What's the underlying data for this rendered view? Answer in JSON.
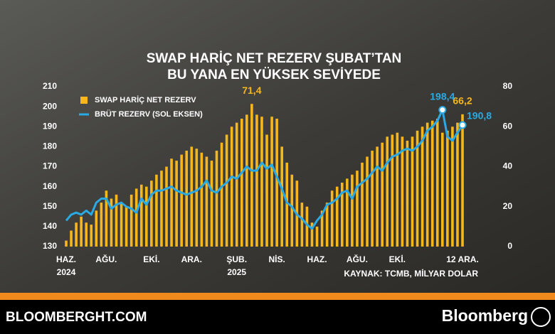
{
  "chart_data": {
    "type": "combo",
    "title_lines": [
      "SWAP HARİÇ NET REZERV ŞUBAT’TAN",
      "BU YANA EN YÜKSEK SEVİYEDE"
    ],
    "source": "KAYNAK: TCMB, MİLYAR DOLAR",
    "categories": [
      "HAZ.",
      null,
      null,
      null,
      null,
      null,
      null,
      null,
      "AĞU.",
      null,
      null,
      null,
      null,
      null,
      null,
      null,
      null,
      "EKİ.",
      null,
      null,
      null,
      null,
      null,
      null,
      null,
      "ARA.",
      null,
      null,
      null,
      null,
      null,
      null,
      null,
      null,
      "ŞUB.",
      null,
      null,
      null,
      null,
      null,
      null,
      null,
      "NİS.",
      null,
      null,
      null,
      null,
      null,
      null,
      null,
      "HAZ.",
      null,
      null,
      null,
      null,
      null,
      null,
      null,
      "AĞU.",
      null,
      null,
      null,
      null,
      null,
      null,
      null,
      "EKİ.",
      null,
      null,
      null,
      null,
      null,
      null,
      null,
      null,
      null,
      null,
      null,
      null,
      "12 ARA."
    ],
    "category_sublabels": [
      "2024",
      null,
      null,
      null,
      null,
      null,
      null,
      null,
      null,
      null,
      null,
      null,
      null,
      null,
      null,
      null,
      null,
      null,
      null,
      null,
      null,
      null,
      null,
      null,
      null,
      null,
      null,
      null,
      null,
      null,
      null,
      null,
      null,
      null,
      "2025",
      null,
      null,
      null,
      null,
      null,
      null,
      null,
      null,
      null,
      null,
      null,
      null,
      null,
      null,
      null,
      null,
      null,
      null,
      null,
      null,
      null,
      null,
      null,
      null,
      null,
      null,
      null,
      null,
      null,
      null,
      null,
      null,
      null,
      null,
      null,
      null,
      null,
      null,
      null,
      null,
      null,
      null,
      null,
      null,
      null
    ],
    "series": [
      {
        "name": "SWAP HARİÇ NET REZERV",
        "type": "bar",
        "axis": "y2",
        "color": "#f5b71c",
        "values": [
          3,
          8,
          12,
          15,
          12,
          11,
          18,
          22,
          28,
          24,
          26,
          22,
          20,
          26,
          29,
          31,
          30,
          33,
          36,
          38,
          40,
          44,
          43,
          46,
          48,
          50,
          49,
          47,
          45,
          43,
          48,
          52,
          56,
          60,
          62,
          64,
          66,
          71.4,
          66,
          65,
          56,
          65,
          64,
          50,
          42,
          36,
          33,
          22,
          20,
          12,
          10,
          18,
          22,
          28,
          30,
          32,
          34,
          36,
          38,
          42,
          45,
          48,
          50,
          52,
          55,
          56,
          57,
          55,
          53,
          55,
          58,
          60,
          62,
          63,
          64,
          57,
          58,
          60,
          62,
          66.2
        ],
        "value_labels": [
          null,
          null,
          null,
          null,
          null,
          null,
          null,
          null,
          null,
          null,
          null,
          null,
          null,
          null,
          null,
          null,
          null,
          null,
          null,
          null,
          null,
          null,
          null,
          null,
          null,
          null,
          null,
          null,
          null,
          null,
          null,
          null,
          null,
          null,
          null,
          null,
          null,
          "71,4",
          null,
          null,
          null,
          null,
          null,
          null,
          null,
          null,
          null,
          null,
          null,
          null,
          null,
          null,
          null,
          null,
          null,
          null,
          null,
          null,
          null,
          null,
          null,
          null,
          null,
          null,
          null,
          null,
          null,
          null,
          null,
          null,
          null,
          null,
          null,
          null,
          null,
          null,
          null,
          null,
          null,
          "66,2"
        ]
      },
      {
        "name": "BRÜT REZERV (SOL EKSEN)",
        "type": "line",
        "color": "#2aa9e3",
        "values": [
          143,
          146,
          147,
          146,
          148,
          146,
          152,
          154,
          154,
          149,
          151,
          152,
          150,
          149,
          147,
          154,
          151,
          156,
          158,
          158,
          159,
          160,
          158,
          157,
          156,
          157,
          158,
          160,
          163,
          158,
          157,
          160,
          162,
          165,
          164,
          167,
          170,
          168,
          168,
          172,
          169,
          171,
          165,
          159,
          152,
          150,
          146,
          144,
          141,
          139,
          143,
          146,
          151,
          152,
          154,
          157,
          158,
          154,
          160,
          162,
          164,
          167,
          170,
          168,
          172,
          175,
          176,
          178,
          179,
          178,
          180,
          183,
          188,
          190,
          193,
          198.4,
          185,
          183,
          187,
          190.8
        ],
        "value_labels": [
          null,
          null,
          null,
          null,
          null,
          null,
          null,
          null,
          null,
          null,
          null,
          null,
          null,
          null,
          null,
          null,
          null,
          null,
          null,
          null,
          null,
          null,
          null,
          null,
          null,
          null,
          null,
          null,
          null,
          null,
          null,
          null,
          null,
          null,
          null,
          null,
          null,
          null,
          null,
          null,
          null,
          null,
          null,
          null,
          null,
          null,
          null,
          null,
          null,
          null,
          null,
          null,
          null,
          null,
          null,
          null,
          null,
          null,
          null,
          null,
          null,
          null,
          null,
          null,
          null,
          null,
          null,
          null,
          null,
          null,
          null,
          null,
          null,
          null,
          null,
          "198,4",
          null,
          null,
          null,
          "190,8"
        ]
      }
    ],
    "ylim": [
      130,
      210
    ],
    "yticks": [
      130,
      140,
      150,
      160,
      170,
      180,
      190,
      200,
      210
    ],
    "y2lim": [
      0,
      80
    ],
    "y2ticks": [
      0,
      20,
      40,
      60,
      80
    ]
  },
  "footer": {
    "site": "BLOOMBERGHT.COM",
    "brand": "Bloomberg"
  }
}
